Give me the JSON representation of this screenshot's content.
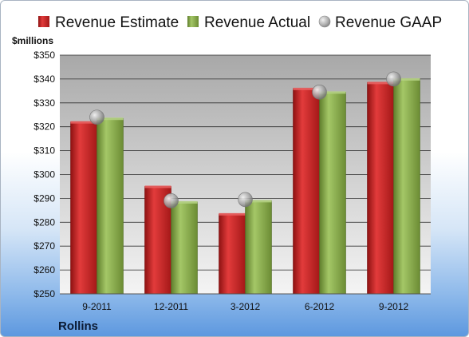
{
  "chart_data": {
    "type": "bar",
    "categories": [
      "9-2011",
      "12-2011",
      "3-2012",
      "6-2012",
      "9-2012"
    ],
    "series": [
      {
        "name": "Revenue Estimate",
        "values": [
          322,
          295,
          283.5,
          336,
          338.5
        ],
        "color": "#d42a2a"
      },
      {
        "name": "Revenue Actual",
        "values": [
          323.5,
          288.5,
          289,
          334.5,
          340
        ],
        "color": "#8ab04a"
      },
      {
        "name": "Revenue GAAP",
        "values": [
          324,
          289,
          289.5,
          334.5,
          340
        ],
        "color": "#b8b8b8",
        "marker": "sphere"
      }
    ],
    "ylabel": "$millions",
    "ylim": [
      250,
      350
    ],
    "yticks": [
      "$250",
      "$260",
      "$270",
      "$280",
      "$290",
      "$300",
      "$310",
      "$320",
      "$330",
      "$340",
      "$350"
    ],
    "ytick_values": [
      250,
      260,
      270,
      280,
      290,
      300,
      310,
      320,
      330,
      340,
      350
    ],
    "grid": true,
    "legend_position": "top",
    "company": "Rollins"
  }
}
